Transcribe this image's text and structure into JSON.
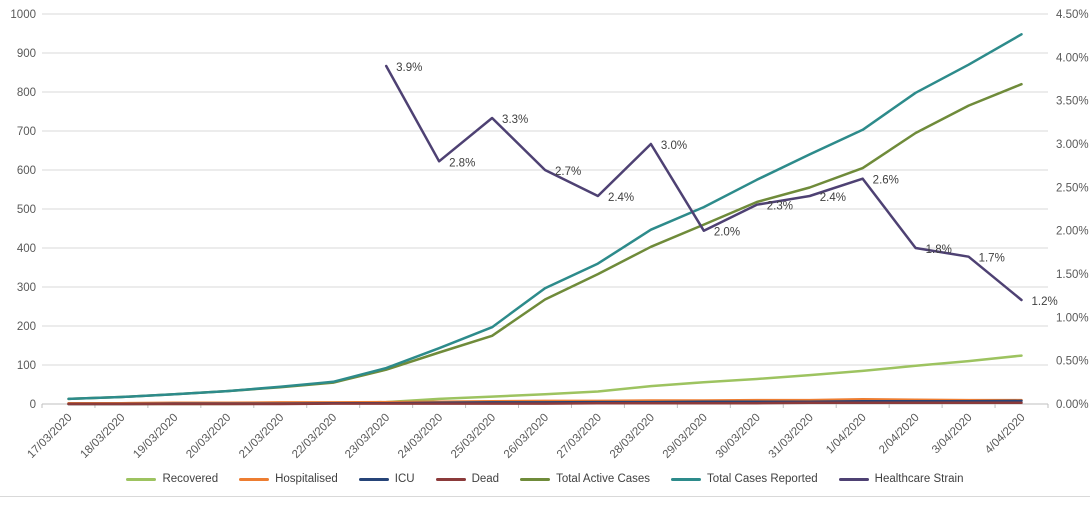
{
  "chart_data": {
    "type": "line",
    "title": "",
    "categories": [
      "17/03/2020",
      "18/03/2020",
      "19/03/2020",
      "20/03/2020",
      "21/03/2020",
      "22/03/2020",
      "23/03/2020",
      "24/03/2020",
      "25/03/2020",
      "26/03/2020",
      "27/03/2020",
      "28/03/2020",
      "29/03/2020",
      "30/03/2020",
      "31/03/2020",
      "1/04/2020",
      "2/04/2020",
      "3/04/2020",
      "4/04/2020"
    ],
    "left_axis": {
      "min": 0,
      "max": 1000,
      "step": 100,
      "tick_labels": [
        "0",
        "100",
        "200",
        "300",
        "400",
        "500",
        "600",
        "700",
        "800",
        "900",
        "1000"
      ]
    },
    "right_axis": {
      "min": 0,
      "max": 4.5,
      "step": 0.5,
      "tick_labels": [
        "0.00%",
        "0.50%",
        "1.00%",
        "1.50%",
        "2.00%",
        "2.50%",
        "3.00%",
        "3.50%",
        "4.00%",
        "4.50%"
      ]
    },
    "grid": true,
    "legend_position": "bottom",
    "series": [
      {
        "name": "Recovered",
        "axis": "left",
        "color": "#9DC360",
        "values": [
          0,
          0,
          0,
          0,
          1,
          2,
          5,
          13,
          19,
          25,
          32,
          46,
          56,
          64,
          74,
          85,
          98,
          110,
          124
        ]
      },
      {
        "name": "Hospitalised",
        "axis": "left",
        "color": "#ED7D31",
        "values": [
          2,
          2,
          3,
          3,
          4,
          4,
          5,
          6,
          7,
          8,
          8,
          9,
          9,
          10,
          10,
          12,
          11,
          10,
          10
        ]
      },
      {
        "name": "ICU",
        "axis": "left",
        "color": "#264478",
        "values": [
          0,
          0,
          1,
          1,
          1,
          2,
          2,
          3,
          4,
          4,
          5,
          5,
          6,
          6,
          6,
          7,
          7,
          7,
          8
        ]
      },
      {
        "name": "Dead",
        "axis": "left",
        "color": "#8B3A3A",
        "values": [
          0,
          0,
          0,
          0,
          0,
          1,
          1,
          1,
          1,
          1,
          2,
          2,
          2,
          2,
          3,
          3,
          3,
          3,
          3
        ]
      },
      {
        "name": "Total Active Cases",
        "axis": "left",
        "color": "#6F8B3A",
        "values": [
          13,
          18,
          25,
          33,
          43,
          55,
          88,
          132,
          175,
          268,
          333,
          403,
          460,
          518,
          555,
          605,
          695,
          765,
          820
        ]
      },
      {
        "name": "Total Cases Reported",
        "axis": "left",
        "color": "#2D8B8B",
        "values": [
          13,
          18,
          25,
          33,
          44,
          57,
          92,
          143,
          197,
          297,
          360,
          447,
          505,
          575,
          640,
          703,
          798,
          870,
          948
        ]
      },
      {
        "name": "Healthcare Strain",
        "axis": "right",
        "color": "#4E4173",
        "values": [
          null,
          null,
          null,
          null,
          null,
          null,
          3.9,
          2.8,
          3.3,
          2.7,
          2.4,
          3.0,
          2.0,
          2.3,
          2.4,
          2.6,
          1.8,
          1.7,
          1.2
        ],
        "data_labels": [
          null,
          null,
          null,
          null,
          null,
          null,
          "3.9%",
          "2.8%",
          "3.3%",
          "2.7%",
          "2.4%",
          "3.0%",
          "2.0%",
          "2.3%",
          "2.4%",
          "2.6%",
          "1.8%",
          "1.7%",
          "1.2%"
        ]
      }
    ]
  },
  "style": {
    "grid_color": "#d9d9d9",
    "axis_color": "#bfbfbf",
    "tick_color": "#bfbfbf",
    "axis_text_color": "#595959",
    "data_label_color": "#404040",
    "legend_text_color": "#404040"
  }
}
